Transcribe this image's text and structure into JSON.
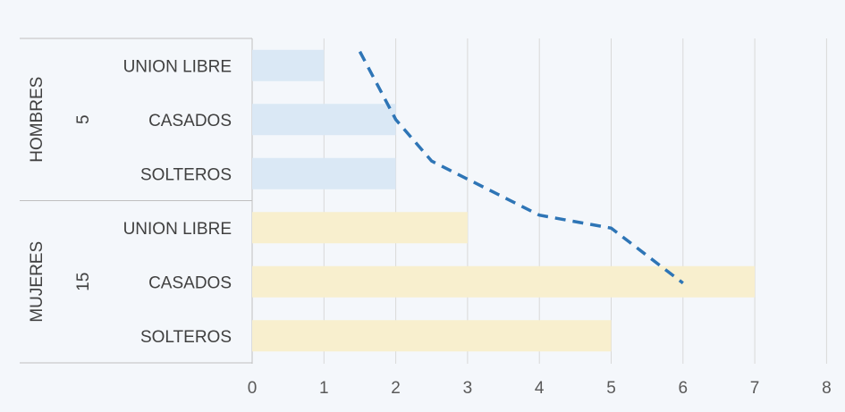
{
  "colors": {
    "background": "#f4f7fb",
    "grid": "#d9d9d9",
    "axis": "#bfbfbf",
    "hombres_bar": "#dae8f5",
    "mujeres_bar": "#f8efce",
    "trend_line": "#2e75b6"
  },
  "chart_data": {
    "type": "bar",
    "orientation": "horizontal",
    "title": "",
    "xlabel": "",
    "ylabel": "",
    "xlim": [
      0,
      8
    ],
    "x_ticks": [
      "0",
      "1",
      "2",
      "3",
      "4",
      "5",
      "6",
      "7",
      "8"
    ],
    "grid": true,
    "legend": "none",
    "groups": [
      {
        "label": "HOMBRES",
        "total": "5",
        "color": "#dae8f5",
        "categories": [
          "UNION LIBRE",
          "CASADOS",
          "SOLTEROS"
        ],
        "values": [
          1,
          2,
          2
        ]
      },
      {
        "label": "MUJERES",
        "total": "15",
        "color": "#f8efce",
        "categories": [
          "UNION LIBRE",
          "CASADOS",
          "SOLTEROS"
        ],
        "values": [
          3,
          7,
          5
        ]
      }
    ],
    "trendline": {
      "style": "dashed",
      "color": "#2e75b6",
      "points": [
        [
          1.5,
          "UNION LIBRE",
          "HOMBRES"
        ],
        [
          2.0,
          "CASADOS",
          "HOMBRES"
        ],
        [
          2.5,
          "SOLTEROS",
          "HOMBRES"
        ],
        [
          4.0,
          "UNION LIBRE",
          "MUJERES"
        ],
        [
          5.0,
          "CASADOS",
          "MUJERES"
        ],
        [
          6.0,
          "CASADOS",
          "MUJERES"
        ]
      ]
    }
  }
}
